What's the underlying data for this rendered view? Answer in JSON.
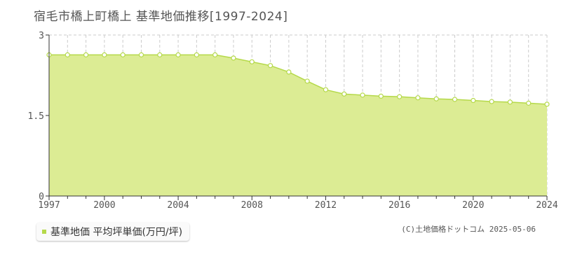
{
  "colors": {
    "area_fill": "#dcec94",
    "line": "#b5d94a",
    "marker_fill": "#ffffff",
    "grid": "#cccccc",
    "axis": "#333333"
  },
  "chart_data": {
    "type": "area",
    "title": "宿毛市橋上町橋上 基準地価推移[1997-2024]",
    "xlabel": "",
    "ylabel": "",
    "x": [
      1997,
      1998,
      1999,
      2000,
      2001,
      2002,
      2003,
      2004,
      2005,
      2006,
      2007,
      2008,
      2009,
      2010,
      2011,
      2012,
      2013,
      2014,
      2015,
      2016,
      2017,
      2018,
      2019,
      2020,
      2021,
      2022,
      2023,
      2024
    ],
    "series": [
      {
        "name": "基準地価 平均坪単価(万円/坪)",
        "values": [
          2.63,
          2.63,
          2.63,
          2.63,
          2.63,
          2.63,
          2.63,
          2.63,
          2.63,
          2.63,
          2.57,
          2.5,
          2.43,
          2.31,
          2.14,
          1.98,
          1.9,
          1.88,
          1.86,
          1.85,
          1.83,
          1.81,
          1.8,
          1.78,
          1.76,
          1.75,
          1.73,
          1.71
        ]
      }
    ],
    "xlim": [
      1997,
      2024
    ],
    "ylim": [
      0,
      3
    ],
    "x_ticks": [
      "1997",
      "2000",
      "2004",
      "2008",
      "2012",
      "2016",
      "2020",
      "2024"
    ],
    "y_ticks": [
      "0",
      "1.5",
      "3"
    ],
    "grid": true,
    "legend_position": "bottom-left"
  },
  "footer": {
    "copyright": "(C)土地価格ドットコム 2025-05-06"
  }
}
